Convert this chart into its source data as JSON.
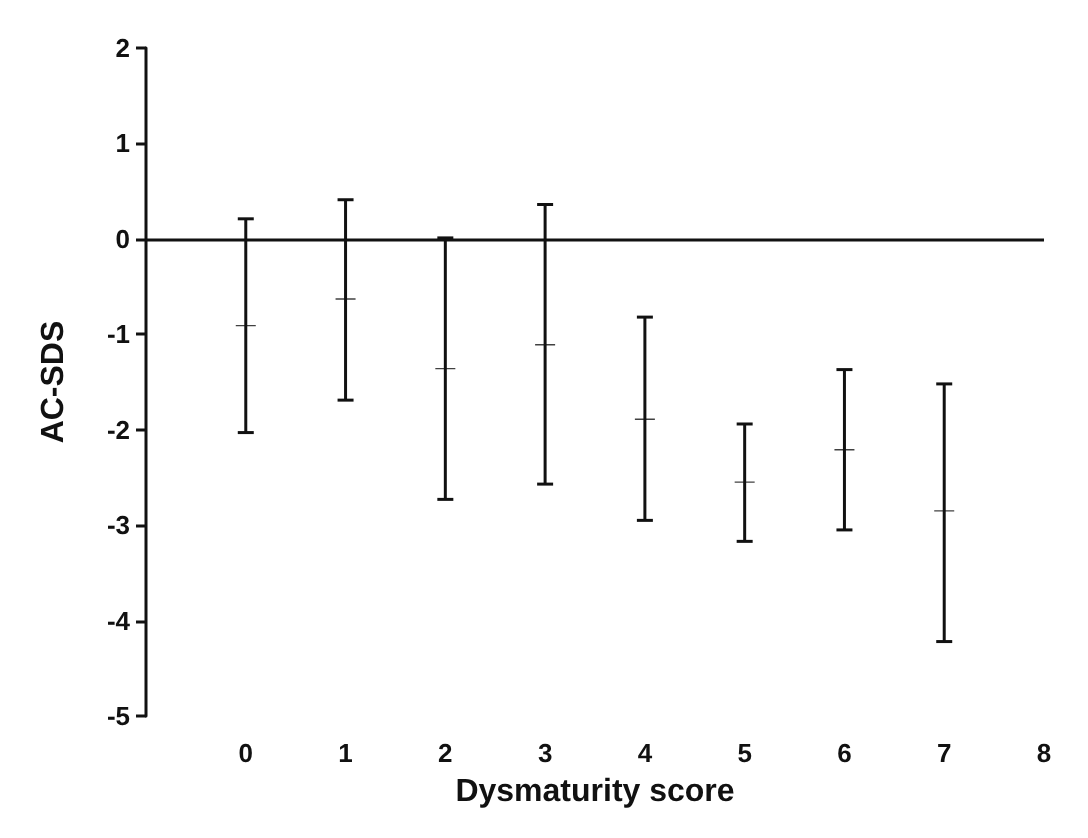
{
  "chart_data": {
    "type": "scatter",
    "xlabel": "Dysmaturity score",
    "ylabel": "AC-SDS",
    "x": [
      0,
      1,
      2,
      3,
      4,
      5,
      6,
      7
    ],
    "values": [
      -0.91,
      -0.63,
      -1.36,
      -1.11,
      -1.89,
      -2.55,
      -2.21,
      -2.85
    ],
    "errors": [
      [
        -2.03,
        0.21
      ],
      [
        -1.69,
        0.41
      ],
      [
        -2.73,
        0.01
      ],
      [
        -2.57,
        0.36
      ],
      [
        -2.95,
        -0.82
      ],
      [
        -3.17,
        -1.94
      ],
      [
        -3.05,
        -1.37
      ],
      [
        -4.22,
        -1.52
      ]
    ],
    "color": "#111111",
    "xlim": [
      -1,
      8
    ],
    "xticks": [
      0,
      1,
      2,
      3,
      4,
      5,
      6,
      7,
      8
    ],
    "ylim": [
      -5,
      2
    ],
    "yticks": [
      -5,
      -4,
      -3,
      -2,
      -1,
      0,
      1,
      2
    ],
    "ref_lines": [
      {
        "axis": "y",
        "value": 0,
        "label": null
      }
    ],
    "grid": false,
    "marker": "cross"
  }
}
